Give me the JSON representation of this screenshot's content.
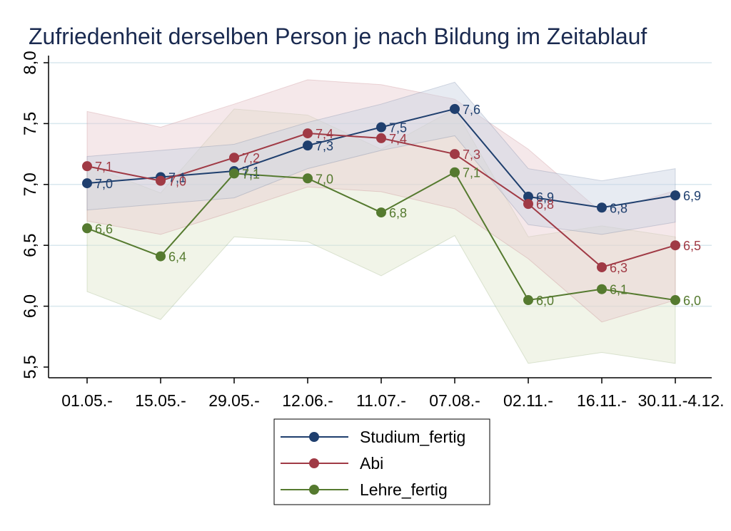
{
  "chart_data": {
    "type": "line",
    "title": "Zufriedenheit derselben Person je nach Bildung im Zeitablauf",
    "xlabel": "",
    "ylabel": "",
    "categories": [
      "01.05.-",
      "15.05.-",
      "29.05.-",
      "12.06.-",
      "11.07.-",
      "07.08.-",
      "02.11.-",
      "16.11.-",
      "30.11.-4.12."
    ],
    "ylim": [
      5.5,
      8.0
    ],
    "yticks": [
      5.5,
      6.0,
      6.5,
      7.0,
      7.5,
      8.0
    ],
    "ytick_labels": [
      "5,5",
      "6,0",
      "6,5",
      "7,0",
      "7,5",
      "8,0"
    ],
    "grid": true,
    "legend_position": "bottom",
    "series": [
      {
        "name": "Studium_fertig",
        "color": "#1f3f6e",
        "band_color": "#c9d3e3",
        "values": [
          7.01,
          7.06,
          7.11,
          7.32,
          7.47,
          7.62,
          6.9,
          6.81,
          6.91
        ],
        "labels": [
          "7,0",
          "7,1",
          "7,1",
          "7,3",
          "7,5",
          "7,6",
          "6,9",
          "6,8",
          "6,9"
        ],
        "ci_upper": [
          7.23,
          7.28,
          7.33,
          7.51,
          7.66,
          7.84,
          7.13,
          7.03,
          7.13
        ],
        "ci_lower": [
          6.79,
          6.84,
          6.89,
          7.13,
          7.28,
          7.4,
          6.67,
          6.59,
          6.69
        ]
      },
      {
        "name": "Abi",
        "color": "#a03a45",
        "band_color": "#e8cdd0",
        "values": [
          7.15,
          7.03,
          7.22,
          7.42,
          7.38,
          7.25,
          6.84,
          6.32,
          6.5
        ],
        "labels": [
          "7,1",
          "7,0",
          "7,2",
          "7,4",
          "7,4",
          "7,3",
          "6,8",
          "6,3",
          "6,5"
        ],
        "ci_upper": [
          7.6,
          7.47,
          7.66,
          7.86,
          7.82,
          7.7,
          7.29,
          6.77,
          6.95
        ],
        "ci_lower": [
          6.7,
          6.59,
          6.78,
          6.98,
          6.94,
          6.8,
          6.39,
          5.87,
          6.05
        ]
      },
      {
        "name": "Lehre_fertig",
        "color": "#557a2f",
        "band_color": "#dfe6cc",
        "values": [
          6.64,
          6.41,
          7.09,
          7.05,
          6.77,
          7.1,
          6.05,
          6.14,
          6.05
        ],
        "labels": [
          "6,6",
          "6,4",
          "7,1",
          "7,0",
          "6,8",
          "7,1",
          "6,0",
          "6,1",
          "6,0"
        ],
        "ci_upper": [
          7.16,
          6.93,
          7.62,
          7.57,
          7.29,
          7.62,
          6.57,
          6.66,
          6.57
        ],
        "ci_lower": [
          6.12,
          5.89,
          6.57,
          6.53,
          6.25,
          6.58,
          5.53,
          5.62,
          5.53
        ]
      }
    ]
  }
}
